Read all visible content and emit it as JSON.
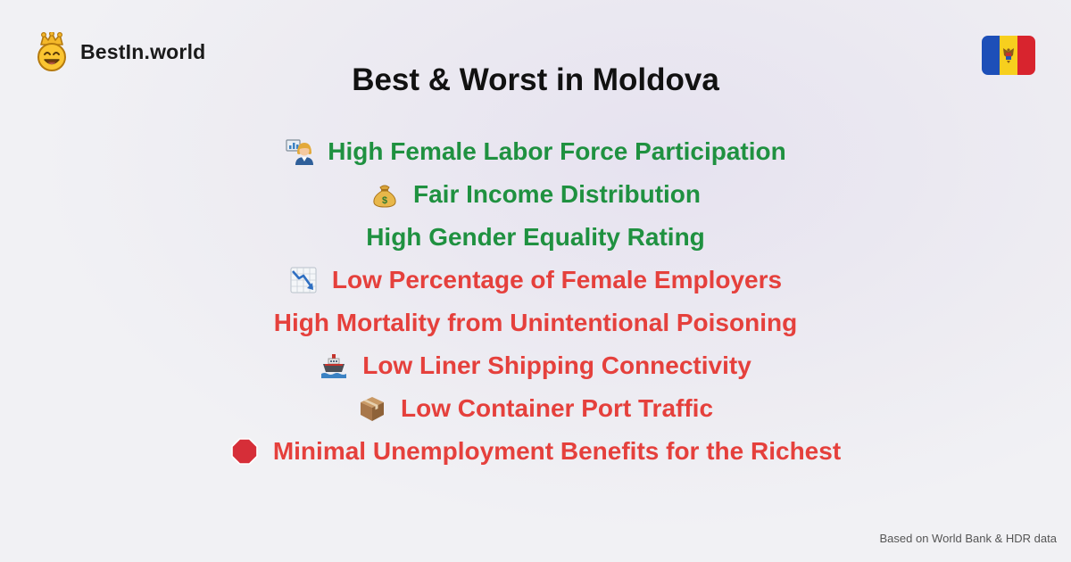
{
  "brand": {
    "name": "BestIn.world",
    "logo_icon": "crowned-smiley-icon"
  },
  "flag": {
    "country": "Moldova",
    "icon": "moldova-flag-icon",
    "colors": [
      "#1d4fb8",
      "#f7cf1e",
      "#d8242e"
    ]
  },
  "title": "Best & Worst in Moldova",
  "colors": {
    "best": "#1f9140",
    "worst": "#e5403c"
  },
  "items": [
    {
      "label": "High Female Labor Force Participation",
      "type": "best",
      "icon": "woman-presenter-icon"
    },
    {
      "label": "Fair Income Distribution",
      "type": "best",
      "icon": "money-bag-icon"
    },
    {
      "label": "High Gender Equality Rating",
      "type": "best",
      "icon": ""
    },
    {
      "label": "Low Percentage of Female Employers",
      "type": "worst",
      "icon": "chart-decreasing-icon"
    },
    {
      "label": "High Mortality from Unintentional Poisoning",
      "type": "worst",
      "icon": ""
    },
    {
      "label": "Low Liner Shipping Connectivity",
      "type": "worst",
      "icon": "ship-icon"
    },
    {
      "label": "Low Container Port Traffic",
      "type": "worst",
      "icon": "package-icon"
    },
    {
      "label": "Minimal Unemployment Benefits for the Richest",
      "type": "worst",
      "icon": "stop-sign-icon"
    }
  ],
  "footer": "Based on World Bank & HDR data"
}
